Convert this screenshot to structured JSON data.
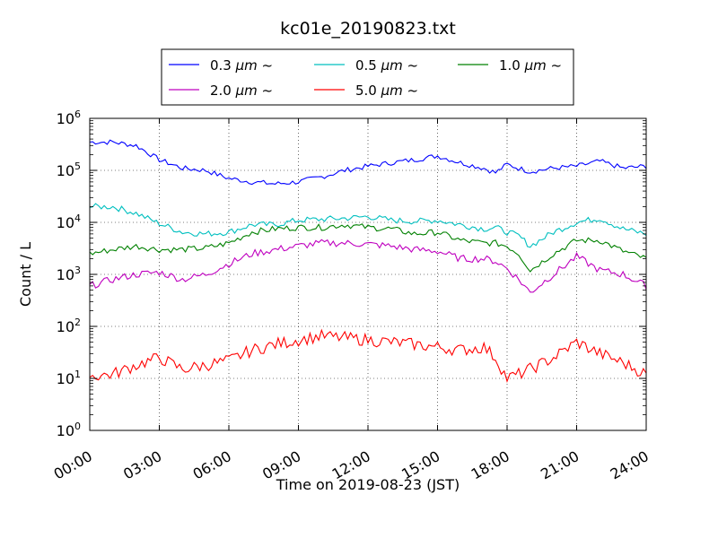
{
  "chart_data": {
    "type": "line",
    "title": "kc01e_20190823.txt",
    "xlabel": "Time on 2019-08-23 (JST)",
    "ylabel": "Count / L",
    "yscale": "log",
    "ylim": [
      1,
      1000000
    ],
    "xlim": [
      "00:00",
      "24:00"
    ],
    "x_ticks": [
      "00:00",
      "03:00",
      "06:00",
      "09:00",
      "12:00",
      "15:00",
      "18:00",
      "21:00",
      "24:00"
    ],
    "y_ticks": [
      {
        "base": "10",
        "exp": "0",
        "value": 1
      },
      {
        "base": "10",
        "exp": "1",
        "value": 10
      },
      {
        "base": "10",
        "exp": "2",
        "value": 100
      },
      {
        "base": "10",
        "exp": "3",
        "value": 1000
      },
      {
        "base": "10",
        "exp": "4",
        "value": 10000
      },
      {
        "base": "10",
        "exp": "5",
        "value": 100000
      },
      {
        "base": "10",
        "exp": "6",
        "value": 1000000
      }
    ],
    "grid": true,
    "legend_position": "top-center",
    "x_hours": [
      0,
      1,
      2,
      3,
      4,
      5,
      6,
      7,
      8,
      9,
      10,
      11,
      12,
      13,
      14,
      15,
      16,
      17,
      17.5,
      18,
      18.5,
      19,
      20,
      21,
      22,
      23,
      24
    ],
    "series": [
      {
        "name_main": "0.3 ",
        "name_unit": "μm",
        "name_tail": " ~",
        "color": "#0000ff",
        "values": [
          350000,
          350000,
          300000,
          160000,
          110000,
          100000,
          70000,
          60000,
          55000,
          60000,
          75000,
          100000,
          120000,
          140000,
          160000,
          190000,
          140000,
          110000,
          90000,
          130000,
          110000,
          95000,
          110000,
          120000,
          150000,
          110000,
          120000
        ]
      },
      {
        "name_main": "0.5 ",
        "name_unit": "μm",
        "name_tail": " ~",
        "color": "#00bfbf",
        "values": [
          20000,
          20000,
          15000,
          9500,
          6500,
          6000,
          6500,
          9000,
          9000,
          11000,
          11500,
          12000,
          13000,
          11000,
          10500,
          11000,
          9000,
          7500,
          8000,
          6500,
          5500,
          3500,
          6500,
          10000,
          12000,
          7500,
          6000
        ]
      },
      {
        "name_main": "1.0 ",
        "name_unit": "μm",
        "name_tail": " ~",
        "color": "#008000",
        "values": [
          2500,
          3000,
          3500,
          3000,
          3000,
          3200,
          4000,
          6500,
          7500,
          8000,
          8000,
          9000,
          8000,
          7500,
          6000,
          6500,
          4500,
          4000,
          4000,
          3500,
          2500,
          1200,
          2500,
          4500,
          4500,
          2800,
          2000
        ]
      },
      {
        "name_main": "2.0 ",
        "name_unit": "μm",
        "name_tail": " ~",
        "color": "#bf00bf",
        "values": [
          600,
          800,
          1000,
          1100,
          800,
          1000,
          1600,
          2500,
          3000,
          3500,
          4000,
          4000,
          3800,
          3500,
          3000,
          2800,
          2000,
          2000,
          1800,
          1300,
          800,
          450,
          1000,
          2200,
          1200,
          1000,
          600
        ]
      },
      {
        "name_main": "5.0 ",
        "name_unit": "μm",
        "name_tail": " ~",
        "color": "#ff0000",
        "values": [
          11,
          12,
          18,
          25,
          15,
          18,
          22,
          35,
          45,
          55,
          65,
          60,
          55,
          50,
          45,
          40,
          35,
          40,
          25,
          10,
          12,
          15,
          25,
          50,
          30,
          20,
          12
        ]
      }
    ]
  }
}
